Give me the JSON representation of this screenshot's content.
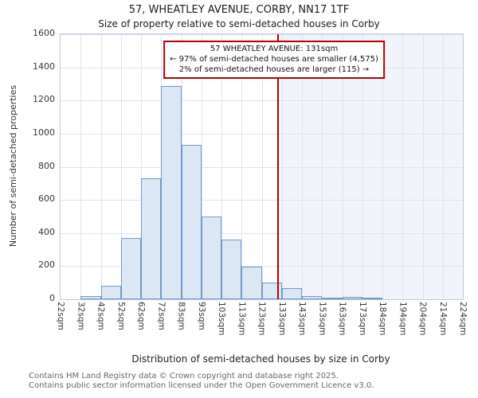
{
  "title": "57, WHEATLEY AVENUE, CORBY, NN17 1TF",
  "subtitle": "Size of property relative to semi-detached houses in Corby",
  "annotation": {
    "line1": "57 WHEATLEY AVENUE: 131sqm",
    "line2": "← 97% of semi-detached houses are smaller (4,575)",
    "line3": "2% of semi-detached houses are larger (115) →"
  },
  "footer": {
    "line1": "Contains HM Land Registry data © Crown copyright and database right 2025.",
    "line2": "Contains public sector information licensed under the Open Government Licence v3.0."
  },
  "colors": {
    "bar_fill": "#dce7f5",
    "bar_border": "#6e99cb",
    "marker_red": "#b40000",
    "grid": "#dde3f0"
  },
  "chart_data": {
    "type": "bar",
    "title": "57, WHEATLEY AVENUE, CORBY, NN17 1TF",
    "subtitle": "Size of property relative to semi-detached houses in Corby",
    "xlabel": "Distribution of semi-detached houses by size in Corby",
    "ylabel": "Number of semi-detached properties",
    "ylim": [
      0,
      1600
    ],
    "ytick_step": 200,
    "grid": true,
    "marker_sqm": 131,
    "bin_edges_sqm": [
      22,
      32,
      42,
      52,
      62,
      72,
      83,
      93,
      103,
      113,
      123,
      133,
      143,
      153,
      163,
      173,
      184,
      194,
      204,
      214,
      224
    ],
    "tick_labels": [
      "22sqm",
      "32sqm",
      "42sqm",
      "52sqm",
      "62sqm",
      "72sqm",
      "83sqm",
      "93sqm",
      "103sqm",
      "113sqm",
      "123sqm",
      "133sqm",
      "143sqm",
      "153sqm",
      "163sqm",
      "173sqm",
      "184sqm",
      "194sqm",
      "204sqm",
      "214sqm",
      "224sqm"
    ],
    "values": [
      0,
      20,
      80,
      370,
      730,
      1290,
      930,
      500,
      360,
      195,
      100,
      65,
      20,
      10,
      15,
      5,
      0,
      0,
      0,
      0
    ],
    "smaller_count": 4575,
    "smaller_pct": 97,
    "larger_count": 115,
    "larger_pct": 2
  }
}
